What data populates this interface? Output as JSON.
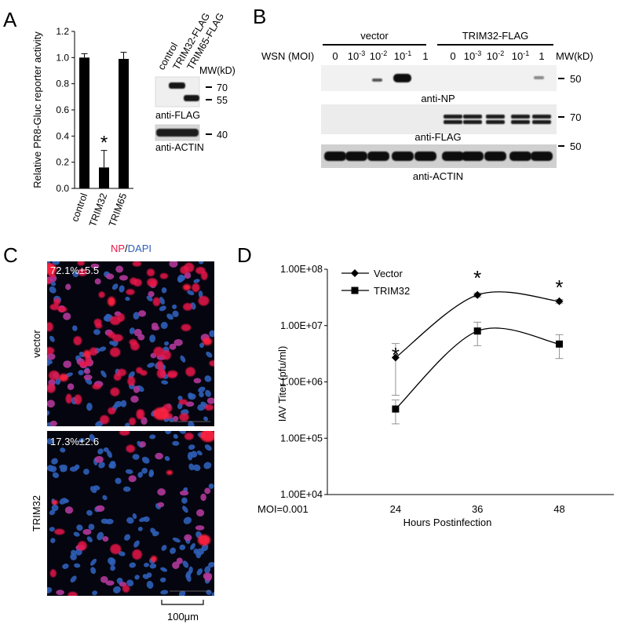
{
  "panels": {
    "A": "A",
    "B": "B",
    "C": "C",
    "D": "D"
  },
  "panel_a": {
    "lanes": [
      "control",
      "TRIM32-FLAG",
      "TRIM65-FLAG"
    ],
    "mw_title": "MW(kD)",
    "mw_marks": [
      "70",
      "55",
      "40"
    ],
    "blot_labels": [
      "anti-FLAG",
      "anti-ACTIN"
    ]
  },
  "panel_b": {
    "groups": [
      "vector",
      "TRIM32-FLAG"
    ],
    "row_label": "WSN (MOI)",
    "moi_base": [
      "0",
      "10",
      "10",
      "10",
      "1",
      "0",
      "10",
      "10",
      "10",
      "1"
    ],
    "moi_exp": [
      "",
      "-3",
      "-2",
      "-1",
      "",
      "",
      "-3",
      "-2",
      "-1",
      ""
    ],
    "mw_title": "MW(kD)",
    "mw_marks": [
      "50",
      "70",
      "50"
    ],
    "blot_labels": [
      "anti-NP",
      "anti-FLAG",
      "anti-ACTIN"
    ]
  },
  "panel_c": {
    "stain_np": "NP",
    "stain_sep": "/",
    "stain_dapi": "DAPI",
    "rows": [
      {
        "label": "vector",
        "percent": "72.1%±5.5"
      },
      {
        "label": "TRIM32",
        "percent": "17.3%±2.6"
      }
    ],
    "scale_bar_label": "100μm"
  },
  "colors": {
    "np": "#e8164a",
    "dapi": "#2f5fb8",
    "bar": "#000000"
  },
  "chart_data": [
    {
      "type": "bar",
      "categories": [
        "control",
        "TRIM32",
        "TRIM65"
      ],
      "values": [
        1.0,
        0.16,
        0.99
      ],
      "errors": [
        0.03,
        0.13,
        0.05
      ],
      "ylabel": "Relative PR8-Gluc reporter activity",
      "ylim": [
        0,
        1.2
      ],
      "yticks": [
        "0.0",
        "0.2",
        "0.4",
        "0.6",
        "0.8",
        "1.0",
        "1.2"
      ],
      "significance": [
        {
          "category": "TRIM32",
          "mark": "*"
        }
      ]
    },
    {
      "type": "line",
      "scale": "log",
      "x": [
        24,
        36,
        48
      ],
      "xlabel": "Hours Postinfection",
      "x_note": "MOI=0.001",
      "ylabel": "IAV Titer (pfu/ml)",
      "ylim": [
        10000,
        100000000
      ],
      "yticks": [
        "1.00E+04",
        "1.00E+05",
        "1.00E+06",
        "1.00E+07",
        "1.00E+08"
      ],
      "series": [
        {
          "name": "Vector",
          "marker": "diamond",
          "values": [
            2700000,
            35000000,
            27000000
          ],
          "err_low": [
            580000,
            32000000,
            25000000
          ],
          "err_high": [
            4800000,
            38000000,
            29000000
          ]
        },
        {
          "name": "TRIM32",
          "marker": "square",
          "values": [
            330000,
            8000000,
            4700000
          ],
          "err_low": [
            180000,
            4400000,
            2600000
          ],
          "err_high": [
            480000,
            11500000,
            6900000
          ]
        }
      ],
      "significance": [
        {
          "x": 24,
          "mark": "*"
        },
        {
          "x": 36,
          "mark": "*"
        },
        {
          "x": 48,
          "mark": "*"
        }
      ],
      "legend": "top-left"
    }
  ]
}
